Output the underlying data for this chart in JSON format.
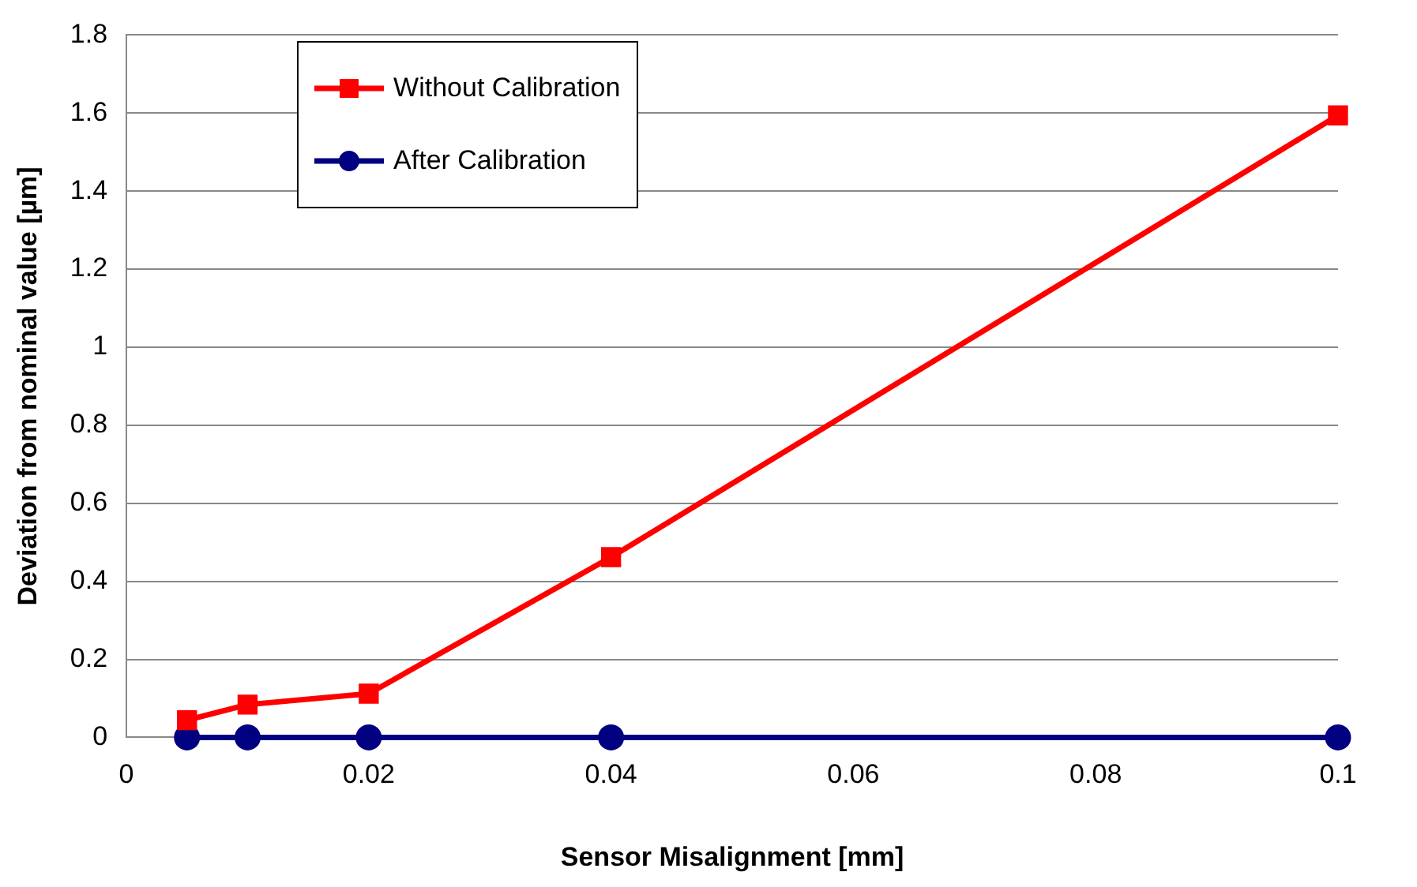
{
  "chart_data": {
    "type": "line",
    "xlabel": "Sensor Misalignment [mm]",
    "ylabel": "Deviation from nominal value [µm]",
    "x": [
      0.005,
      0.01,
      0.02,
      0.04,
      0.1
    ],
    "series": [
      {
        "name": "Without Calibration",
        "color": "#ff0000",
        "marker": "square",
        "values": [
          0.044,
          0.084,
          0.112,
          0.462,
          1.594
        ]
      },
      {
        "name": "After Calibration",
        "color": "#000080",
        "marker": "circle",
        "values": [
          0,
          0,
          0,
          0,
          0
        ]
      }
    ],
    "xlim": [
      0,
      0.1
    ],
    "xticks": [
      0,
      0.02,
      0.04,
      0.06,
      0.08,
      0.1
    ],
    "ylim": [
      0,
      1.8
    ],
    "yticks": [
      0,
      0.2,
      0.4,
      0.6,
      0.8,
      1,
      1.2,
      1.4,
      1.6,
      1.8
    ],
    "grid": "y",
    "legend": "top left",
    "line_style": "solid"
  }
}
